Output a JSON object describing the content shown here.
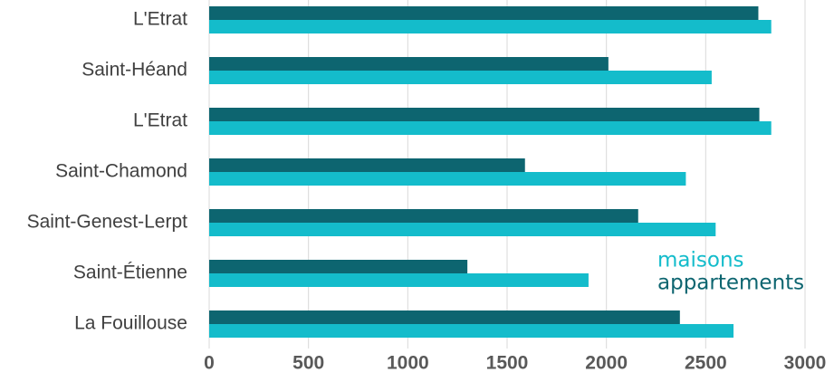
{
  "chart_data": {
    "type": "bar",
    "orientation": "horizontal",
    "categories": [
      "L'Etrat",
      "Saint-Héand",
      "L'Etrat",
      "Saint-Chamond",
      "Saint-Genest-Lerpt",
      "Saint-Étienne",
      "La Fouillouse"
    ],
    "series": [
      {
        "name": "maisons",
        "color": "#14bccb",
        "values": [
          2830,
          2530,
          2830,
          2400,
          2550,
          1910,
          2640
        ]
      },
      {
        "name": "appartements",
        "color": "#0d6570",
        "values": [
          2765,
          2010,
          2770,
          1590,
          2160,
          1300,
          2370
        ]
      }
    ],
    "xlim": [
      0,
      3000
    ],
    "xticks": [
      0,
      500,
      1000,
      1500,
      2000,
      2500,
      3000
    ],
    "grid": true
  }
}
